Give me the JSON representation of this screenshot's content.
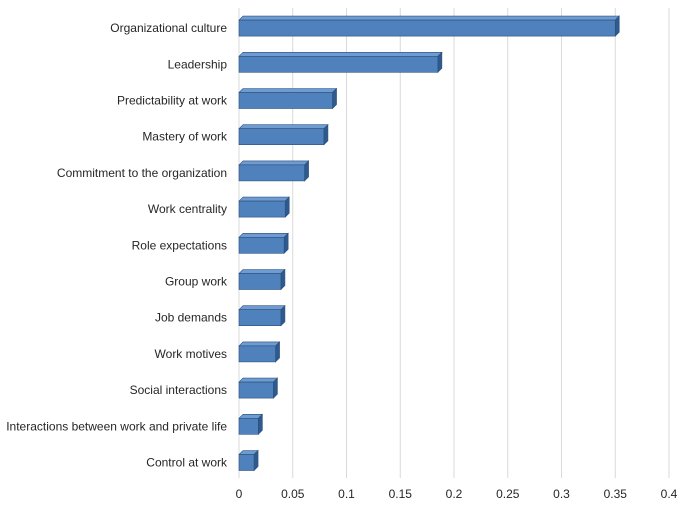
{
  "chart_data": {
    "type": "bar",
    "orientation": "horizontal",
    "title": "",
    "xlabel": "",
    "ylabel": "",
    "xlim": [
      0,
      0.4
    ],
    "x_ticks": [
      0,
      0.05,
      0.1,
      0.15,
      0.2,
      0.25,
      0.3,
      0.35,
      0.4
    ],
    "x_tick_labels": [
      "0",
      "0.05",
      "0.1",
      "0.15",
      "0.2",
      "0.25",
      "0.3",
      "0.35",
      "0.4"
    ],
    "grid": true,
    "bar_style": "3d",
    "categories": [
      "Organizational culture",
      "Leadership",
      "Predictability at work",
      "Mastery of work",
      "Commitment to the organization",
      "Work centrality",
      "Role expectations",
      "Group work",
      "Job demands",
      "Work motives",
      "Social interactions",
      "Interactions between work and private life",
      "Control at work"
    ],
    "values": [
      0.35,
      0.185,
      0.087,
      0.079,
      0.061,
      0.043,
      0.042,
      0.039,
      0.039,
      0.034,
      0.032,
      0.018,
      0.014
    ]
  },
  "colors": {
    "bar_front": "#4f81bd",
    "bar_top": "#6e9bd2",
    "bar_side": "#2f5a8d",
    "bar_edge": "#2a4f7c",
    "grid": "#d9d9d9",
    "text": "#262626"
  }
}
